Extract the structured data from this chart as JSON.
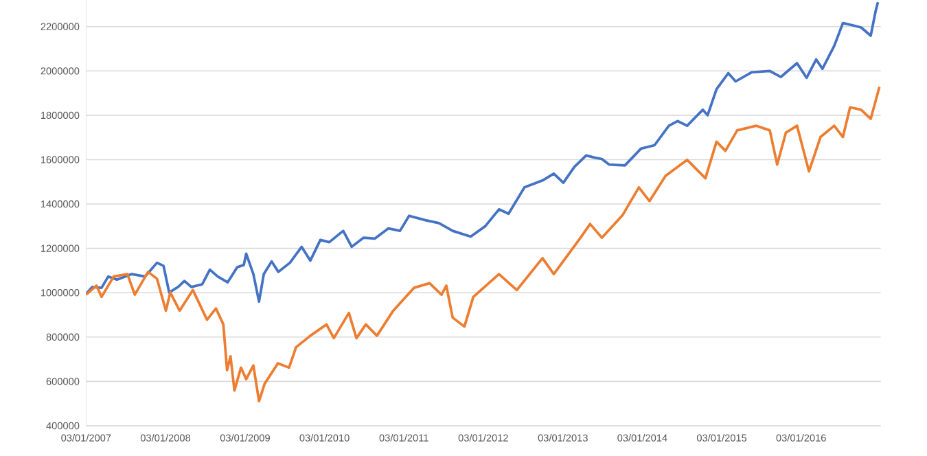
{
  "chart_data": {
    "type": "line",
    "grid": "y",
    "xlim": [
      "2007-01-03",
      "2017-01-03"
    ],
    "ylim": [
      400000,
      2320000
    ],
    "xticks": [
      {
        "value": "2007-01-03",
        "label": "03/01/2007"
      },
      {
        "value": "2008-01-03",
        "label": "03/01/2008"
      },
      {
        "value": "2009-01-03",
        "label": "03/01/2009"
      },
      {
        "value": "2010-01-03",
        "label": "03/01/2010"
      },
      {
        "value": "2011-01-03",
        "label": "03/01/2011"
      },
      {
        "value": "2012-01-03",
        "label": "03/01/2012"
      },
      {
        "value": "2013-01-03",
        "label": "03/01/2013"
      },
      {
        "value": "2014-01-03",
        "label": "03/01/2014"
      },
      {
        "value": "2015-01-03",
        "label": "03/01/2015"
      },
      {
        "value": "2016-01-03",
        "label": "03/01/2016"
      }
    ],
    "yticks": [
      400000,
      600000,
      800000,
      1000000,
      1200000,
      1400000,
      1600000,
      1800000,
      2000000,
      2200000
    ],
    "series": [
      {
        "color": "#4472c4",
        "x": [
          "2007-01-03",
          "2007-02-01",
          "2007-03-15",
          "2007-04-15",
          "2007-05-25",
          "2007-08-01",
          "2007-10-01",
          "2007-11-25",
          "2007-12-25",
          "2008-01-20",
          "2008-03-01",
          "2008-03-30",
          "2008-05-01",
          "2008-06-20",
          "2008-07-25",
          "2008-08-30",
          "2008-10-15",
          "2008-11-28",
          "2008-12-28",
          "2009-01-08",
          "2009-02-10",
          "2009-03-08",
          "2009-03-30",
          "2009-05-05",
          "2009-06-05",
          "2009-07-28",
          "2009-09-20",
          "2009-10-30",
          "2009-12-15",
          "2010-01-25",
          "2010-03-30",
          "2010-05-08",
          "2010-07-01",
          "2010-08-22",
          "2010-10-24",
          "2010-12-16",
          "2011-01-27",
          "2011-04-12",
          "2011-06-13",
          "2011-08-15",
          "2011-11-06",
          "2012-01-12",
          "2012-03-15",
          "2012-04-28",
          "2012-07-10",
          "2012-10-01",
          "2012-11-22",
          "2013-01-05",
          "2013-02-25",
          "2013-04-20",
          "2013-05-30",
          "2013-07-01",
          "2013-08-03",
          "2013-10-15",
          "2013-12-28",
          "2014-02-28",
          "2014-05-05",
          "2014-06-14",
          "2014-07-28",
          "2014-10-08",
          "2014-10-30",
          "2014-12-10",
          "2015-02-02",
          "2015-03-08",
          "2015-05-20",
          "2015-08-12",
          "2015-10-02",
          "2015-12-15",
          "2016-01-28",
          "2016-03-12",
          "2016-04-10",
          "2016-06-03",
          "2016-07-13",
          "2016-08-26",
          "2016-10-05",
          "2016-11-18",
          "2016-12-10",
          "2016-12-21"
        ],
        "values": [
          995000,
          1026000,
          1022000,
          1073000,
          1059000,
          1084000,
          1073000,
          1135000,
          1121000,
          1001000,
          1026000,
          1053000,
          1026000,
          1038000,
          1104000,
          1073000,
          1047000,
          1115000,
          1125000,
          1176000,
          1084000,
          960000,
          1084000,
          1141000,
          1094000,
          1135000,
          1207000,
          1145000,
          1238000,
          1228000,
          1279000,
          1207000,
          1248000,
          1244000,
          1290000,
          1279000,
          1347000,
          1327000,
          1314000,
          1279000,
          1253000,
          1300000,
          1376000,
          1356000,
          1475000,
          1506000,
          1537000,
          1496000,
          1568000,
          1619000,
          1609000,
          1603000,
          1578000,
          1574000,
          1650000,
          1665000,
          1753000,
          1774000,
          1753000,
          1825000,
          1800000,
          1918000,
          1990000,
          1953000,
          1994000,
          2000000,
          1973000,
          2035000,
          1969000,
          2052000,
          2010000,
          2113000,
          2216000,
          2206000,
          2196000,
          2159000,
          2268000,
          2310000
        ]
      },
      {
        "color": "#ed7d31",
        "x": [
          "2007-01-03",
          "2007-02-20",
          "2007-03-15",
          "2007-05-10",
          "2007-07-12",
          "2007-08-15",
          "2007-10-15",
          "2007-11-25",
          "2008-01-05",
          "2008-01-25",
          "2008-03-08",
          "2008-05-08",
          "2008-07-12",
          "2008-08-22",
          "2008-09-25",
          "2008-10-12",
          "2008-10-28",
          "2008-11-15",
          "2008-12-15",
          "2009-01-08",
          "2009-02-10",
          "2009-03-08",
          "2009-04-03",
          "2009-06-03",
          "2009-07-24",
          "2009-08-25",
          "2009-10-30",
          "2010-01-12",
          "2010-02-15",
          "2010-04-25",
          "2010-05-30",
          "2010-07-12",
          "2010-09-01",
          "2010-11-15",
          "2011-02-18",
          "2011-05-01",
          "2011-06-25",
          "2011-07-17",
          "2011-08-15",
          "2011-10-08",
          "2011-11-18",
          "2012-03-15",
          "2012-06-05",
          "2012-10-01",
          "2012-11-22",
          "2013-03-25",
          "2013-05-08",
          "2013-07-01",
          "2013-10-05",
          "2013-12-18",
          "2014-02-05",
          "2014-04-20",
          "2014-07-28",
          "2014-10-20",
          "2014-12-10",
          "2015-01-20",
          "2015-03-15",
          "2015-06-10",
          "2015-08-12",
          "2015-09-15",
          "2015-10-25",
          "2015-12-15",
          "2016-02-08",
          "2016-04-01",
          "2016-06-03",
          "2016-07-13",
          "2016-08-15",
          "2016-10-05",
          "2016-11-18",
          "2016-12-28"
        ],
        "values": [
          991000,
          1032000,
          981000,
          1073000,
          1084000,
          991000,
          1094000,
          1063000,
          919000,
          1001000,
          919000,
          1012000,
          878000,
          929000,
          857000,
          651000,
          713000,
          559000,
          662000,
          610000,
          672000,
          511000,
          590000,
          682000,
          662000,
          754000,
          806000,
          857000,
          795000,
          909000,
          795000,
          857000,
          806000,
          919000,
          1022000,
          1043000,
          991000,
          1032000,
          888000,
          847000,
          981000,
          1084000,
          1012000,
          1156000,
          1084000,
          1248000,
          1310000,
          1248000,
          1351000,
          1475000,
          1413000,
          1527000,
          1599000,
          1516000,
          1681000,
          1640000,
          1732000,
          1753000,
          1732000,
          1578000,
          1722000,
          1753000,
          1547000,
          1702000,
          1753000,
          1702000,
          1836000,
          1825000,
          1784000,
          1928000
        ]
      }
    ]
  }
}
